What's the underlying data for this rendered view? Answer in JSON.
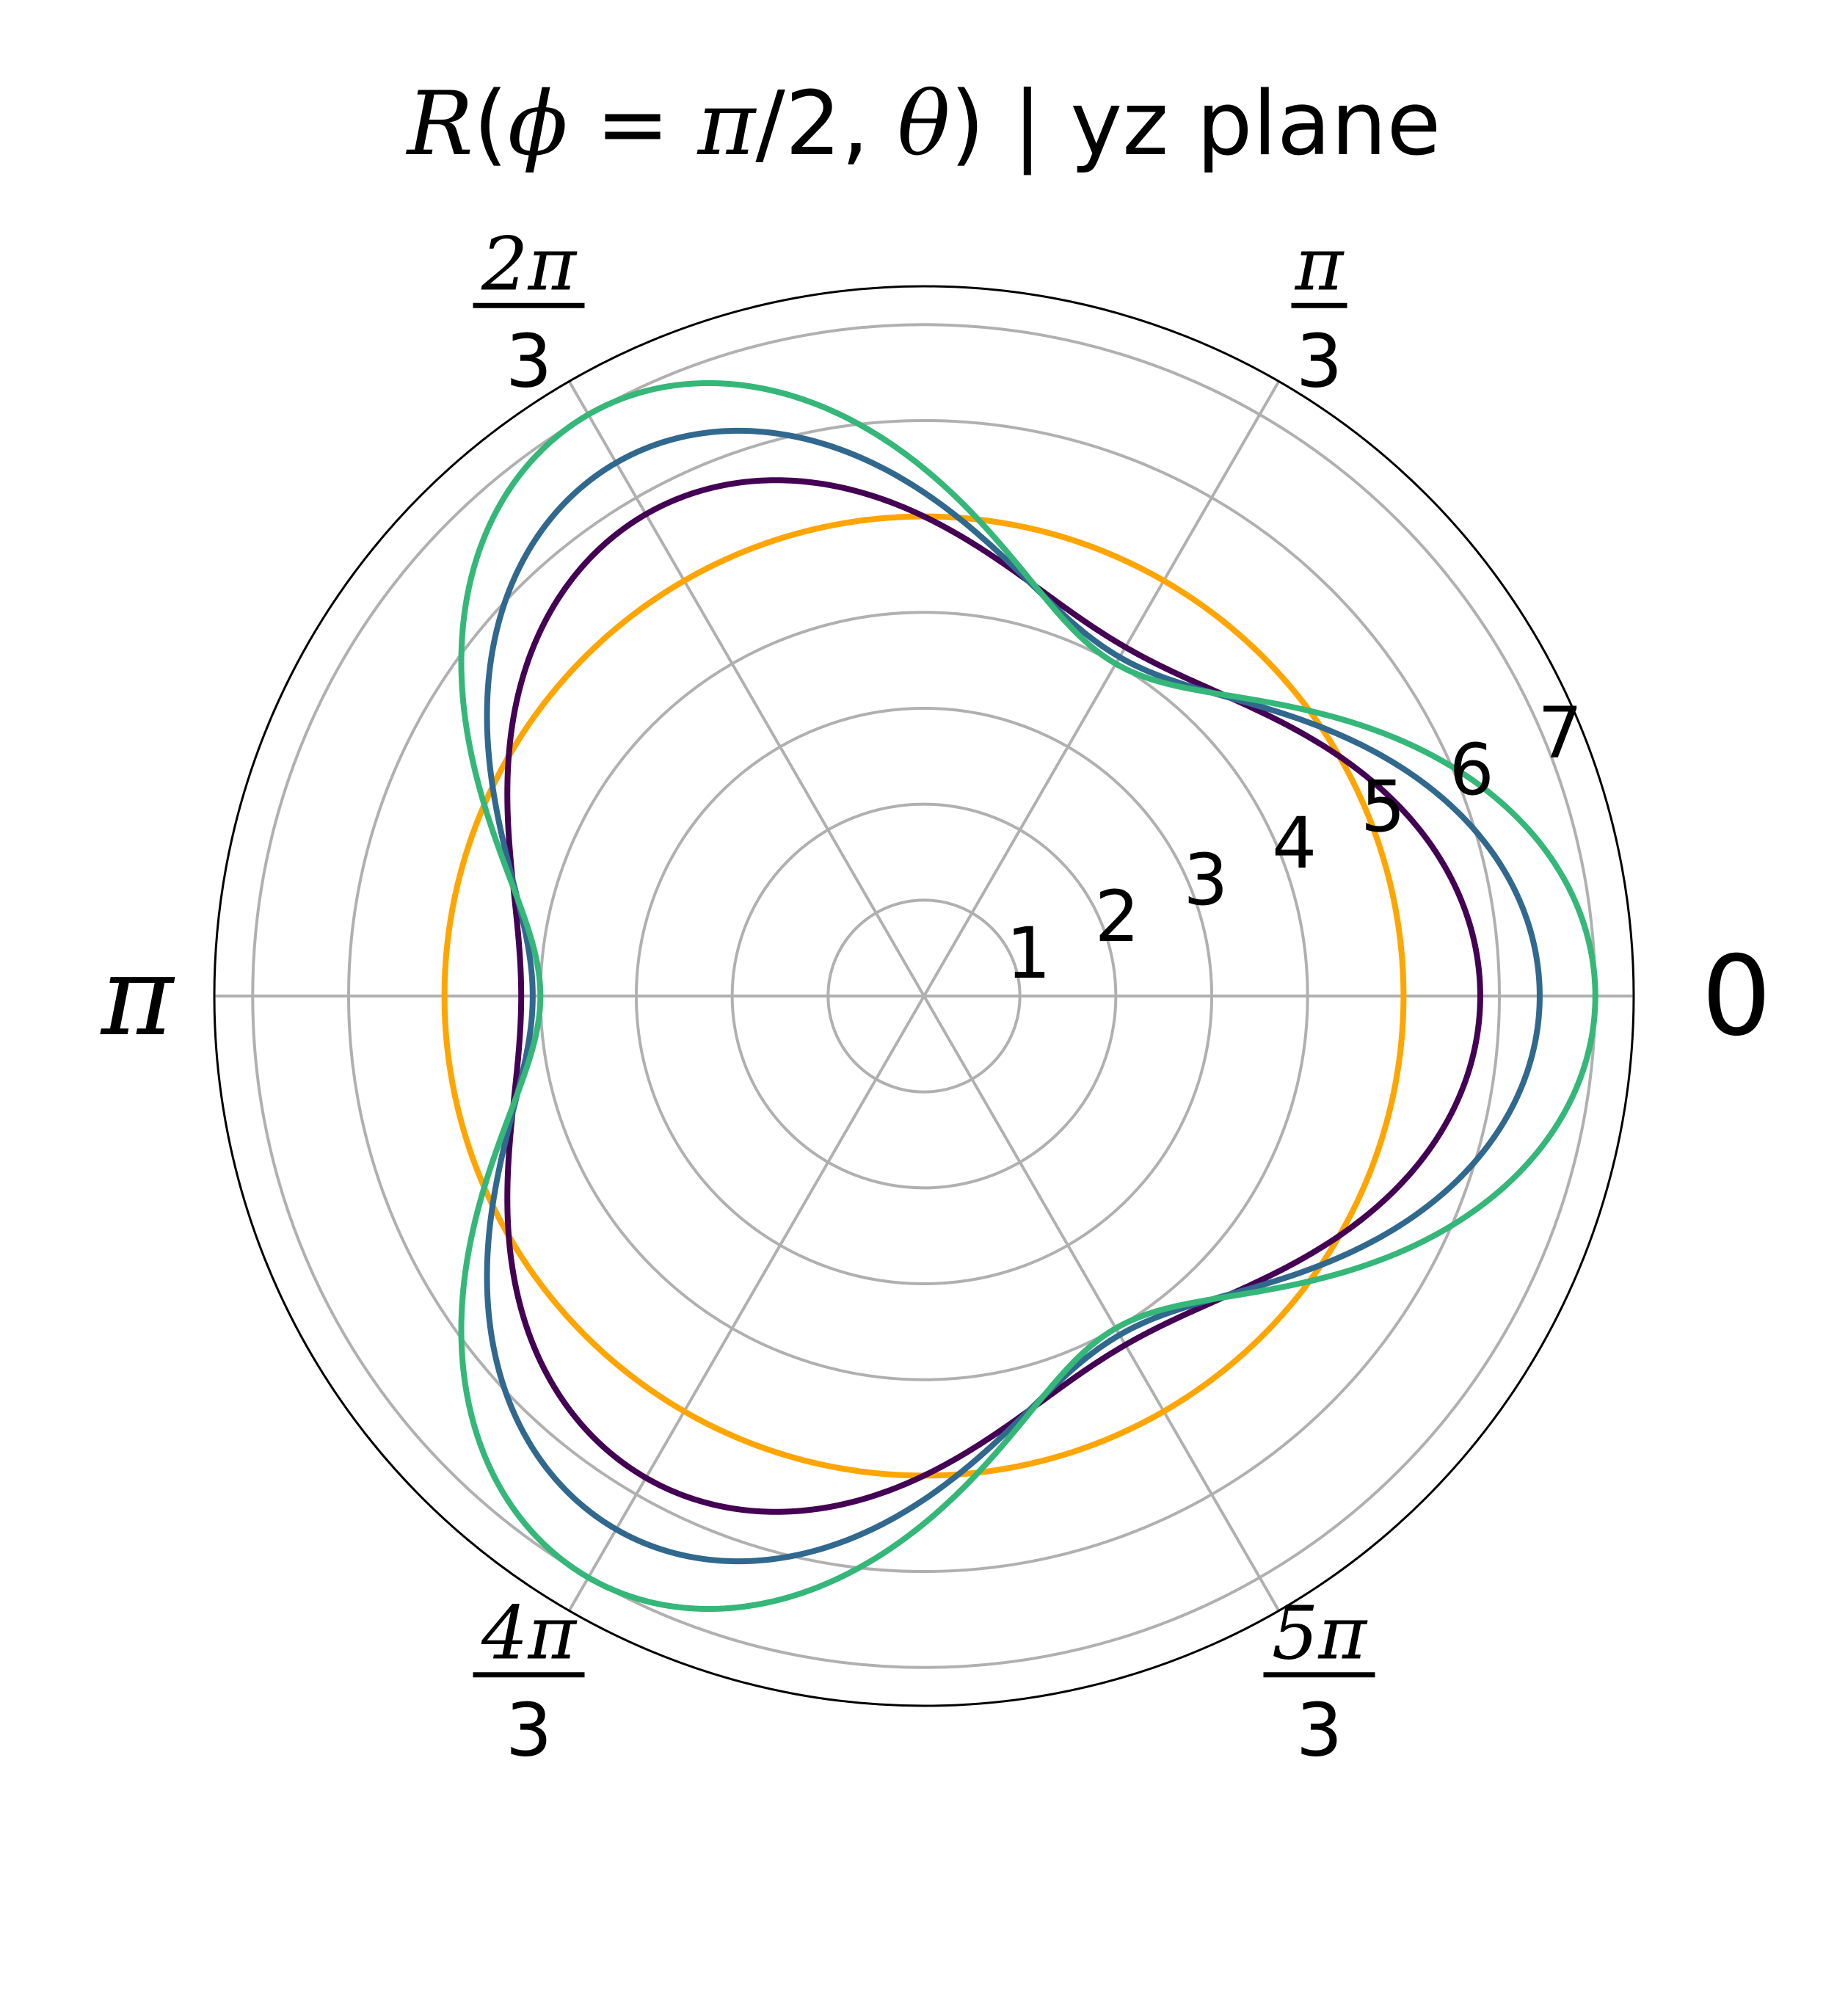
{
  "chart_data": {
    "type": "line",
    "projection": "polar",
    "title": {
      "func": "R",
      "open": "(",
      "phi": "ϕ",
      "eq": " = ",
      "pi": "π",
      "slash2": "/2, ",
      "theta": "θ",
      "close": ")",
      "suffix": " | yz plane"
    },
    "angular_ticks": [
      {
        "angle_deg": 0,
        "kind": "plain",
        "text": "0"
      },
      {
        "angle_deg": 60,
        "kind": "frac",
        "num": "π",
        "den": "3"
      },
      {
        "angle_deg": 120,
        "kind": "frac",
        "num": "2π",
        "den": "3"
      },
      {
        "angle_deg": 180,
        "kind": "plain_italic",
        "text": "π"
      },
      {
        "angle_deg": 240,
        "kind": "frac",
        "num": "4π",
        "den": "3"
      },
      {
        "angle_deg": 300,
        "kind": "frac",
        "num": "5π",
        "den": "3"
      }
    ],
    "radial_ticks": [
      "1",
      "2",
      "3",
      "4",
      "5",
      "6",
      "7"
    ],
    "radial_tick_values": [
      1,
      2,
      3,
      4,
      5,
      6,
      7
    ],
    "radial_label_angle_deg": 22.5,
    "rlim": [
      0,
      7.4
    ],
    "grid": true,
    "legend": "none",
    "series": [
      {
        "base": 5,
        "amplitude": 0,
        "harmonic": 3,
        "color": "#FFA500"
      },
      {
        "base": 5,
        "amplitude": 0.8,
        "harmonic": 3,
        "color": "#440154"
      },
      {
        "base": 5.25,
        "amplitude": 1.17,
        "harmonic": 3,
        "color": "#31688E"
      },
      {
        "base": 5.5,
        "amplitude": 1.5,
        "harmonic": 3,
        "color": "#35B779"
      }
    ],
    "colors": {
      "grid": "#b0b0b0",
      "frame": "#000000"
    }
  }
}
